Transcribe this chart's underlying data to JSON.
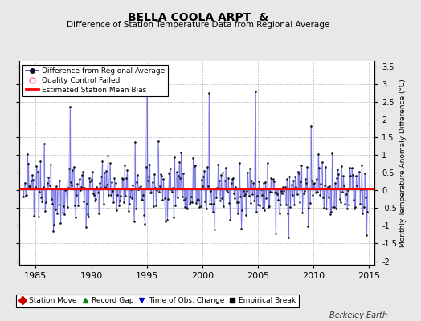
{
  "title": "BELLA COOLA ARPT  &",
  "subtitle": "Difference of Station Temperature Data from Regional Average",
  "ylabel": "Monthly Temperature Anomaly Difference (°C)",
  "xlabel_years": [
    1985,
    1990,
    1995,
    2000,
    2005,
    2010,
    2015
  ],
  "xlim": [
    1983.5,
    2015.5
  ],
  "ylim": [
    -2.1,
    3.65
  ],
  "yticks": [
    -2,
    -1.5,
    -1,
    -0.5,
    0,
    0.5,
    1,
    1.5,
    2,
    2.5,
    3,
    3.5
  ],
  "bias_value": 0.05,
  "background_color": "#e8e8e8",
  "plot_bg_color": "#ffffff",
  "line_color": "#3333cc",
  "fill_color": "#8888ff",
  "dot_color": "#111111",
  "bias_color": "#ff0000",
  "station_move_color": "#cc0000",
  "record_gap_color": "#008800",
  "tobs_color": "#0000cc",
  "empirical_color": "#000000",
  "footer": "Berkeley Earth",
  "seed": 12345
}
